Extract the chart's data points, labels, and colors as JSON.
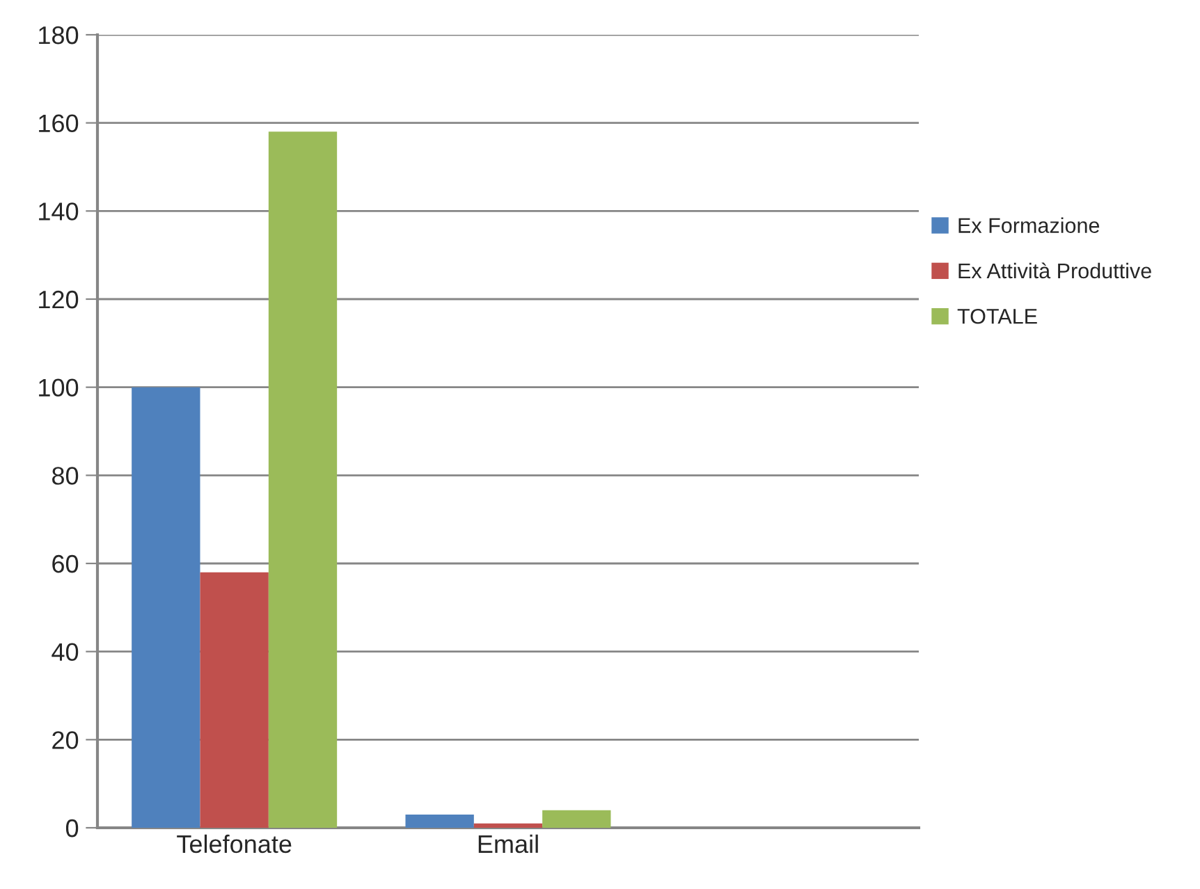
{
  "chart_data": {
    "type": "bar",
    "categories": [
      "Telefonate",
      "Email",
      null
    ],
    "series": [
      {
        "name": "Ex Formazione",
        "color": "#4f81bd",
        "values": [
          100,
          3,
          null
        ]
      },
      {
        "name": "Ex Attività Produttive",
        "color": "#c0504d",
        "values": [
          58,
          1,
          null
        ]
      },
      {
        "name": "TOTALE",
        "color": "#9bbb59",
        "values": [
          158,
          4,
          null
        ]
      }
    ],
    "ylim": [
      0,
      180
    ],
    "yticks": [
      0,
      20,
      40,
      60,
      80,
      100,
      120,
      140,
      160,
      180
    ],
    "grid": "y",
    "legend": "right"
  }
}
